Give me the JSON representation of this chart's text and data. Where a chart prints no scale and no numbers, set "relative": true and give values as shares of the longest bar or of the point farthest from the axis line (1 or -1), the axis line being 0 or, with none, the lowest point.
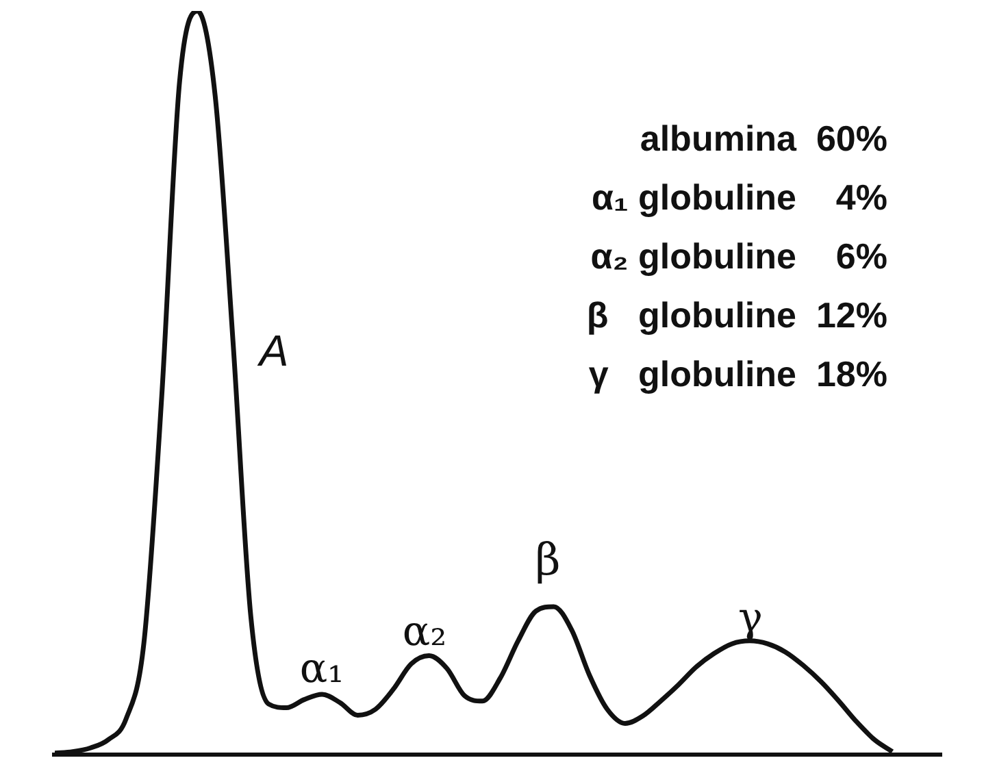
{
  "chart_data": {
    "type": "line",
    "relative": true,
    "color": "#111111",
    "marker": "none",
    "line_style": "solid",
    "legend": false,
    "tick_labels": false,
    "categories": [
      null,
      null,
      null,
      null,
      null,
      null,
      null,
      null,
      null,
      null,
      null,
      null,
      null,
      null,
      null,
      null,
      null,
      null,
      null,
      null,
      null,
      null,
      null,
      null,
      null,
      null,
      null,
      null,
      null,
      null,
      null,
      null,
      null,
      null,
      null,
      null,
      null,
      null,
      null,
      null,
      null,
      null,
      null,
      null,
      null,
      null,
      null,
      null
    ],
    "values": [
      0.002,
      0.004,
      0.009,
      0.02,
      0.048,
      0.15,
      0.481,
      0.904,
      1,
      0.886,
      0.556,
      0.186,
      0.068,
      0.063,
      0.074,
      0.081,
      0.07,
      0.053,
      0.061,
      0.088,
      0.122,
      0.133,
      0.116,
      0.079,
      0.072,
      0.103,
      0.153,
      0.193,
      0.199,
      0.168,
      0.107,
      0.061,
      0.042,
      0.052,
      0.072,
      0.094,
      0.118,
      0.136,
      0.149,
      0.153,
      0.149,
      0.138,
      0.12,
      0.098,
      0.072,
      0.044,
      0.02,
      0.004
    ],
    "annotations": [
      "A",
      "α₁",
      "α₂",
      "β",
      "γ",
      "albumina  60%",
      "α₁ globuline    4%",
      "α₂ globuline    6%",
      "β   globuline  12%",
      "γ   globuline  18%"
    ]
  }
}
